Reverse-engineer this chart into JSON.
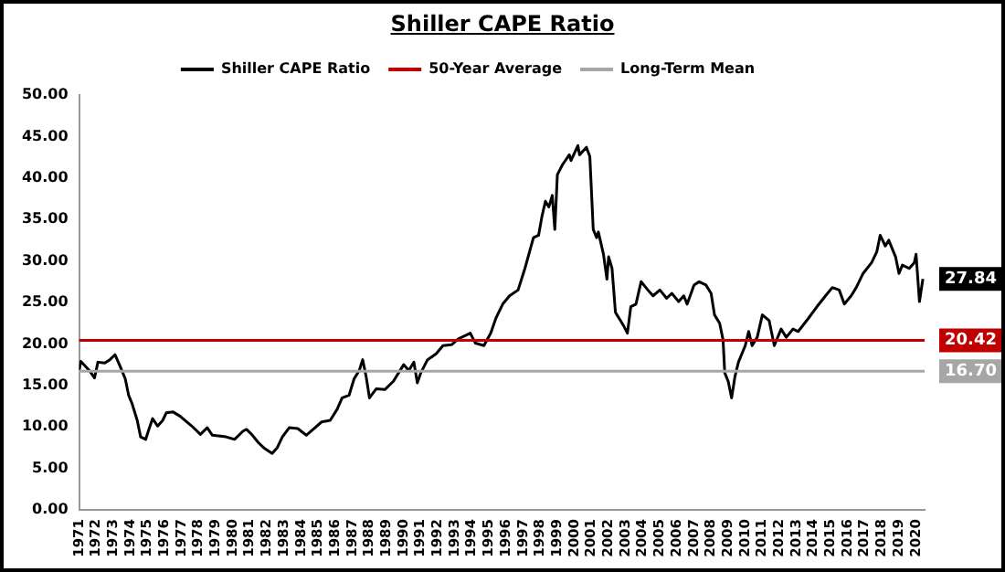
{
  "chart_data": {
    "type": "line",
    "title": "Shiller CAPE Ratio",
    "series": [
      {
        "name": "Shiller CAPE Ratio",
        "color": "#000000",
        "x": [
          1971.0,
          1971.1,
          1971.6,
          1971.9,
          1972.1,
          1972.5,
          1972.8,
          1973.0,
          1973.1,
          1973.4,
          1973.7,
          1973.9,
          1974.1,
          1974.4,
          1974.6,
          1974.9,
          1975.1,
          1975.3,
          1975.6,
          1975.9,
          1976.1,
          1976.5,
          1976.9,
          1977.6,
          1978.1,
          1978.5,
          1978.8,
          1979.6,
          1980.1,
          1980.6,
          1980.8,
          1981.1,
          1981.5,
          1981.8,
          1982.3,
          1982.6,
          1982.9,
          1983.3,
          1983.8,
          1984.3,
          1984.7,
          1985.2,
          1985.7,
          1986.1,
          1986.4,
          1986.8,
          1987.1,
          1987.4,
          1987.6,
          1987.8,
          1988.0,
          1988.4,
          1988.9,
          1989.4,
          1990.0,
          1990.3,
          1990.6,
          1990.8,
          1991.0,
          1991.4,
          1991.9,
          1992.3,
          1992.8,
          1993.2,
          1993.9,
          1994.2,
          1994.7,
          1995.1,
          1995.4,
          1995.8,
          1996.2,
          1996.7,
          1997.1,
          1997.6,
          1997.9,
          1998.1,
          1998.3,
          1998.5,
          1998.7,
          1998.85,
          1999.0,
          1999.3,
          1999.7,
          1999.8,
          2000.2,
          2000.3,
          2000.7,
          2000.9,
          2001.1,
          2001.3,
          2001.4,
          2001.7,
          2001.9,
          2002.0,
          2002.2,
          2002.4,
          2002.7,
          2002.9,
          2003.1,
          2003.3,
          2003.6,
          2003.9,
          2004.3,
          2004.6,
          2005.0,
          2005.4,
          2005.7,
          2006.1,
          2006.4,
          2006.6,
          2007.0,
          2007.3,
          2007.7,
          2008.0,
          2008.2,
          2008.5,
          2008.7,
          2008.8,
          2009.0,
          2009.2,
          2009.4,
          2009.6,
          2010.0,
          2010.2,
          2010.4,
          2010.7,
          2011.0,
          2011.4,
          2011.7,
          2012.1,
          2012.4,
          2012.8,
          2013.1,
          2013.7,
          2014.2,
          2014.7,
          2015.1,
          2015.5,
          2015.8,
          2016.2,
          2016.5,
          2016.9,
          2017.4,
          2017.7,
          2017.9,
          2018.2,
          2018.4,
          2018.8,
          2019.0,
          2019.2,
          2019.6,
          2019.9,
          2020.0,
          2020.2,
          2020.4
        ],
        "values": [
          16.8,
          17.9,
          16.8,
          15.9,
          17.8,
          17.7,
          18.1,
          18.5,
          18.7,
          17.3,
          15.8,
          13.8,
          12.8,
          10.8,
          8.8,
          8.5,
          9.8,
          11.0,
          10.1,
          10.8,
          11.7,
          11.8,
          11.3,
          10.1,
          9.1,
          9.9,
          9.0,
          8.8,
          8.5,
          9.5,
          9.7,
          9.1,
          8.1,
          7.5,
          6.8,
          7.5,
          8.8,
          9.9,
          9.8,
          9.0,
          9.7,
          10.6,
          10.8,
          12.1,
          13.5,
          13.8,
          15.8,
          16.8,
          18.1,
          16.1,
          13.5,
          14.6,
          14.5,
          15.5,
          17.5,
          16.8,
          17.8,
          15.3,
          16.5,
          18.1,
          18.8,
          19.8,
          19.9,
          20.6,
          21.3,
          20.1,
          19.8,
          21.3,
          23.1,
          24.8,
          25.8,
          26.5,
          29.1,
          32.8,
          33.1,
          35.4,
          37.2,
          36.5,
          37.9,
          33.8,
          40.4,
          41.6,
          42.8,
          42.1,
          43.9,
          42.8,
          43.7,
          42.6,
          33.8,
          32.8,
          33.5,
          30.8,
          27.8,
          30.5,
          29.1,
          23.8,
          22.8,
          22.1,
          21.3,
          24.5,
          24.8,
          27.5,
          26.5,
          25.8,
          26.5,
          25.5,
          26.1,
          25.1,
          25.8,
          24.8,
          27.1,
          27.5,
          27.1,
          26.1,
          23.5,
          22.5,
          20.5,
          16.5,
          15.5,
          13.5,
          16.1,
          17.8,
          19.8,
          21.5,
          19.8,
          20.8,
          23.5,
          22.8,
          19.8,
          21.8,
          20.8,
          21.8,
          21.5,
          23.1,
          24.5,
          25.8,
          26.8,
          26.5,
          24.8,
          25.8,
          26.8,
          28.5,
          29.8,
          31.1,
          33.1,
          31.8,
          32.5,
          30.5,
          28.5,
          29.5,
          29.1,
          29.8,
          30.8,
          25.1,
          27.84
        ]
      }
    ],
    "xlim": [
      1971,
      2020.5
    ],
    "xticks": [
      1971,
      1972,
      1973,
      1974,
      1975,
      1976,
      1977,
      1978,
      1979,
      1980,
      1981,
      1982,
      1983,
      1984,
      1985,
      1986,
      1987,
      1988,
      1989,
      1990,
      1991,
      1992,
      1993,
      1994,
      1995,
      1996,
      1997,
      1998,
      1999,
      2000,
      2001,
      2002,
      2003,
      2004,
      2005,
      2006,
      2007,
      2008,
      2009,
      2010,
      2011,
      2012,
      2013,
      2014,
      2015,
      2016,
      2017,
      2018,
      2019,
      2020
    ],
    "ylim": [
      0,
      50
    ],
    "yticks": [
      {
        "value": 0,
        "label": "0.00"
      },
      {
        "value": 5,
        "label": "5.00"
      },
      {
        "value": 10,
        "label": "10.00"
      },
      {
        "value": 15,
        "label": "15.00"
      },
      {
        "value": 20,
        "label": "20.00"
      },
      {
        "value": 25,
        "label": "25.00"
      },
      {
        "value": 30,
        "label": "30.00"
      },
      {
        "value": 35,
        "label": "35.00"
      },
      {
        "value": 40,
        "label": "40.00"
      },
      {
        "value": 45,
        "label": "45.00"
      },
      {
        "value": 50,
        "label": "50.00"
      }
    ],
    "ref_lines": [
      {
        "axis": "y",
        "value": 20.42,
        "label": "50-Year Average",
        "color": "#c00000"
      },
      {
        "axis": "y",
        "value": 16.7,
        "label": "Long-Term Mean",
        "color": "#a6a6a6"
      }
    ],
    "annotations": [
      "27.84",
      "20.42",
      "16.70"
    ],
    "grid": false,
    "legend": "top",
    "marker": "none",
    "line_style": "solid"
  }
}
